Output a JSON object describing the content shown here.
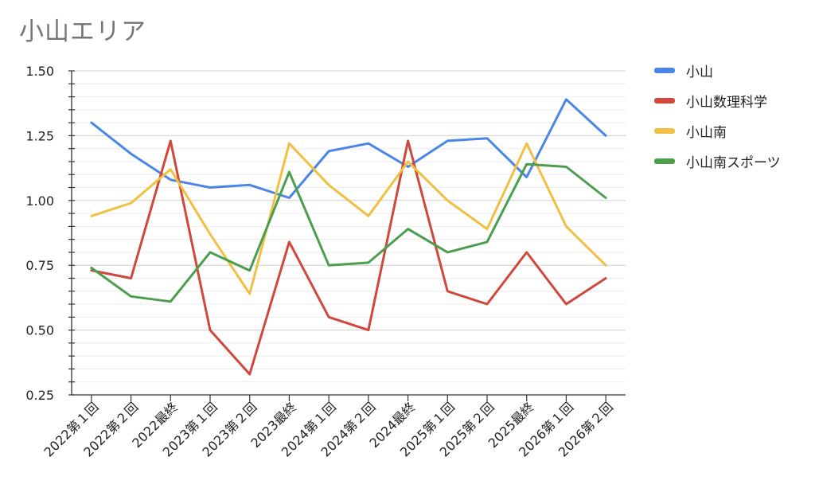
{
  "chart_data": {
    "type": "line",
    "title": "小山エリア",
    "xlabel": "",
    "ylabel": "",
    "ylim": [
      0.25,
      1.5
    ],
    "y_ticks": [
      "0.25",
      "0.50",
      "0.75",
      "1.00",
      "1.25",
      "1.50"
    ],
    "grid": true,
    "legend_position": "right",
    "categories": [
      "2022第１回",
      "2022第２回",
      "2022最終",
      "2023第１回",
      "2023第２回",
      "2023最終",
      "2024第１回",
      "2024第２回",
      "2024最終",
      "2025第１回",
      "2025第２回",
      "2025最終",
      "2026第１回",
      "2026第２回"
    ],
    "series": [
      {
        "name": "小山",
        "color": "#4a86e8",
        "values": [
          1.3,
          1.18,
          1.08,
          1.05,
          1.06,
          1.01,
          1.19,
          1.22,
          1.13,
          1.23,
          1.24,
          1.09,
          1.39,
          1.25
        ]
      },
      {
        "name": "小山数理科学",
        "color": "#d0473b",
        "values": [
          0.73,
          0.7,
          1.23,
          0.5,
          0.33,
          0.84,
          0.55,
          0.5,
          1.23,
          0.65,
          0.6,
          0.8,
          0.6,
          0.7
        ]
      },
      {
        "name": "小山南",
        "color": "#f1c043",
        "values": [
          0.94,
          0.99,
          1.12,
          0.87,
          0.64,
          1.22,
          1.06,
          0.94,
          1.15,
          1.0,
          0.89,
          1.22,
          0.9,
          0.75
        ]
      },
      {
        "name": "小山南スポーツ",
        "color": "#4a9e4e",
        "values": [
          0.74,
          0.63,
          0.61,
          0.8,
          0.73,
          1.11,
          0.75,
          0.76,
          0.89,
          0.8,
          0.84,
          1.14,
          1.13,
          1.01
        ]
      }
    ]
  }
}
